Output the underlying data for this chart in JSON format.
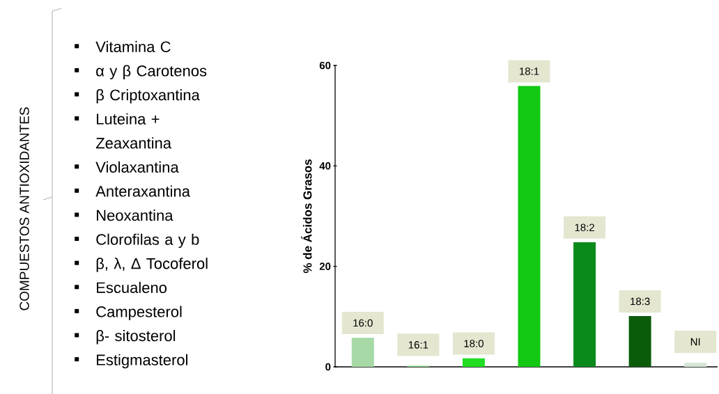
{
  "chart_data": [
    {
      "type": "other",
      "title": "COMPUESTOS ANTIOXIDANTES",
      "annotations": [
        "Vitamina C",
        "α y β Carotenos",
        "β Criptoxantina",
        "Luteina  + Zeaxantina",
        "Violaxantina",
        "Anteraxantina",
        "Neoxantina",
        "Clorofilas a y b",
        "β, λ, Δ Tocoferol",
        "Escualeno",
        "Campesterol",
        "β- sitosterol",
        "Estigmasterol"
      ]
    },
    {
      "type": "bar",
      "ylabel": "% de Ácidos Grasos",
      "categories": [
        "16:0",
        "16:1",
        "18:0",
        "18:1",
        "18:2",
        "18:3",
        "NI"
      ],
      "values": [
        5.8,
        0.2,
        1.7,
        55.9,
        24.8,
        10.1,
        0.8
      ],
      "colors": [
        "#a6d9a6",
        "#7fcf7f",
        "#22dd22",
        "#12c812",
        "#0b8a1c",
        "#0a5c0a",
        "#d5e6d5"
      ],
      "ylim": [
        0,
        60
      ],
      "yticks": [
        0,
        20,
        40,
        60
      ],
      "grid": false,
      "tick_labels": "y"
    }
  ]
}
